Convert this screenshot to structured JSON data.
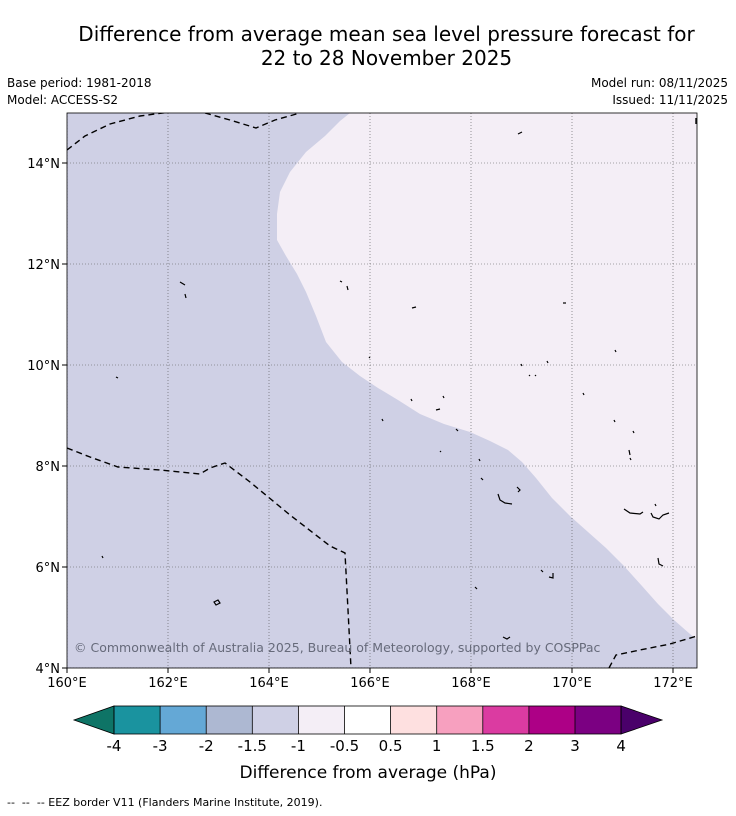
{
  "title_line1": "Difference from average mean sea level pressure forecast for",
  "title_line2": "22 to 28 November 2025",
  "meta_left": [
    "Base period: 1981-2018",
    "Model: ACCESS-S2"
  ],
  "meta_right": [
    "Model run: 08/11/2025",
    "Issued: 11/11/2025"
  ],
  "map": {
    "lat_labels": [
      "14°N",
      "12°N",
      "10°N",
      "8°N",
      "6°N",
      "4°N"
    ],
    "lon_labels": [
      "160°E",
      "162°E",
      "164°E",
      "166°E",
      "168°E",
      "170°E",
      "172°E"
    ],
    "copyright": "© Commonwealth of Australia 2025, Bureau of Meteorology, supported by COSPPac",
    "colors": {
      "lt_minus1": "#cfd0e5",
      "minus1_to_minus05": "#f4eef6",
      "border": "#000000",
      "grid": "#555555"
    }
  },
  "colorbar": {
    "labels": [
      "-4",
      "-3",
      "-2",
      "-1.5",
      "-1",
      "-0.5",
      "0.5",
      "1",
      "1.5",
      "2",
      "3",
      "4"
    ],
    "colors": [
      "#0e7466",
      "#1a939f",
      "#64a8d6",
      "#adb8d2",
      "#cfd0e5",
      "#f4eef6",
      "#ffffff",
      "#fee0e0",
      "#f7a0bf",
      "#db3ba1",
      "#ad0086",
      "#7b0082",
      "#4a006a"
    ],
    "title": "Difference from average (hPa)"
  },
  "footer": "--  --  -- EEZ border V11 (Flanders Marine Institute, 2019)."
}
